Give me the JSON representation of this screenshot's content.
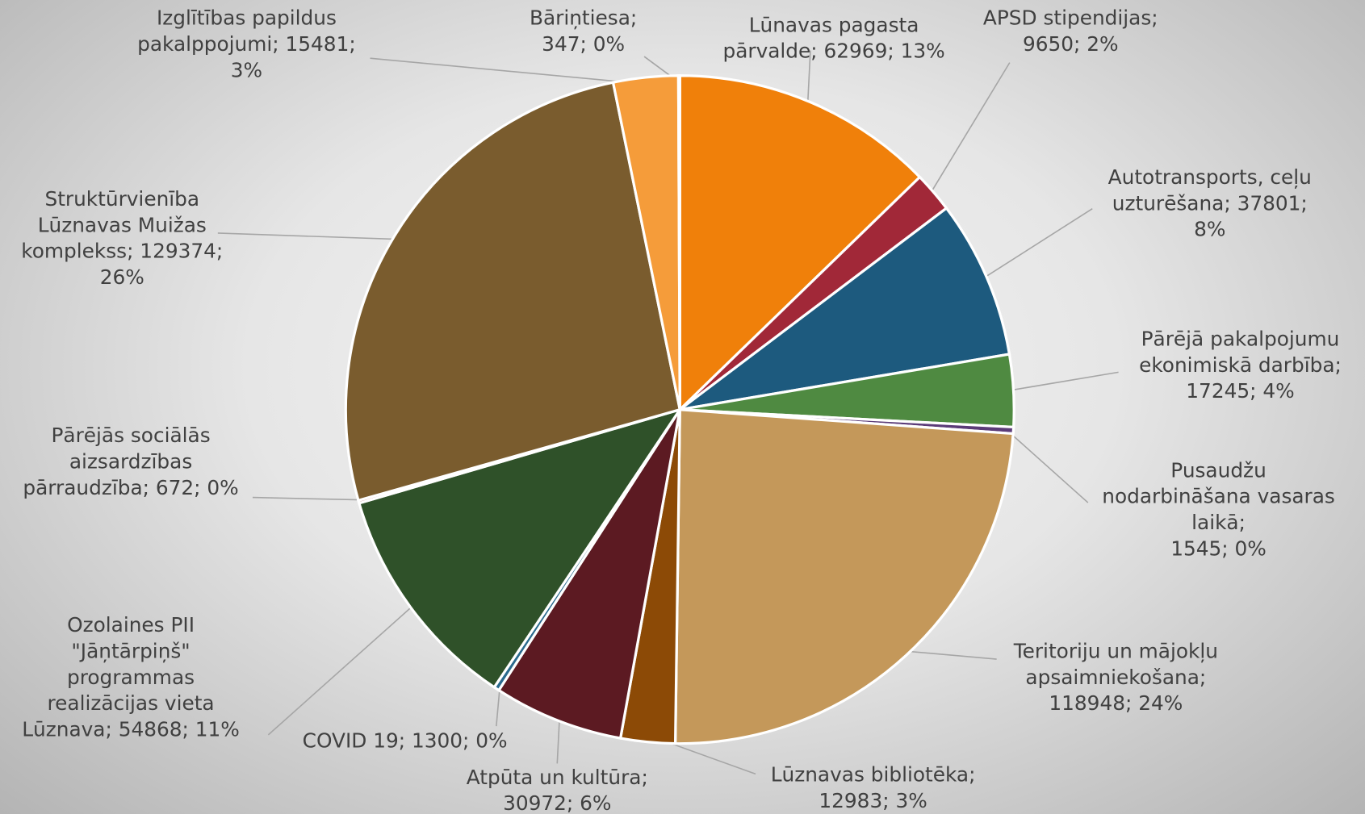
{
  "chart_data": {
    "type": "pie",
    "values": [
      62969,
      9650,
      37801,
      17245,
      1545,
      118948,
      12983,
      30972,
      1300,
      54868,
      672,
      129374,
      15481,
      347
    ],
    "value_labels": [
      [
        "Lūnavas pagasta",
        "pārvalde; 62969; 13%"
      ],
      [
        "APSD stipendijas;",
        "9650; 2%"
      ],
      [
        "Autotransports, ceļu",
        "uzturēšana; 37801;",
        "8%"
      ],
      [
        "Pārējā pakalpojumu",
        "ekonimiskā darbība;",
        "17245; 4%"
      ],
      [
        "Pusaudžu",
        "nodarbināšana vasaras",
        "laikā;",
        "1545; 0%"
      ],
      [
        "Teritoriju un mājokļu",
        "apsaimniekošana;",
        "118948; 24%"
      ],
      [
        "Lūznavas bibliotēka;",
        "12983; 3%"
      ],
      [
        "Atpūta un kultūra;",
        "30972; 6%"
      ],
      [
        "COVID 19; 1300; 0%"
      ],
      [
        "Ozolaines PII",
        "\"Jāņtārpiņš\"",
        "programmas",
        "realizācijas vieta",
        "Lūznava; 54868; 11%"
      ],
      [
        "Pārējās sociālās",
        "aizsardzības",
        "pārraudzība; 672; 0%"
      ],
      [
        "Struktūrvienība",
        "Lūznavas Muižas",
        "komplekss; 129374;",
        "26%"
      ],
      [
        "Izglītības papildus",
        "pakalppojumi; 15481;",
        "3%"
      ],
      [
        "Bāriņtiesa;",
        "347; 0%"
      ]
    ],
    "colors": [
      "#f0800a",
      "#a12838",
      "#1d5a7e",
      "#4f8a41",
      "#5b3b78",
      "#c4985a",
      "#8c4a06",
      "#5c1a22",
      "#2a6a8e",
      "#2f5129",
      "#a12838",
      "#7a5c2e",
      "#f59c3a",
      "#a12838"
    ]
  }
}
